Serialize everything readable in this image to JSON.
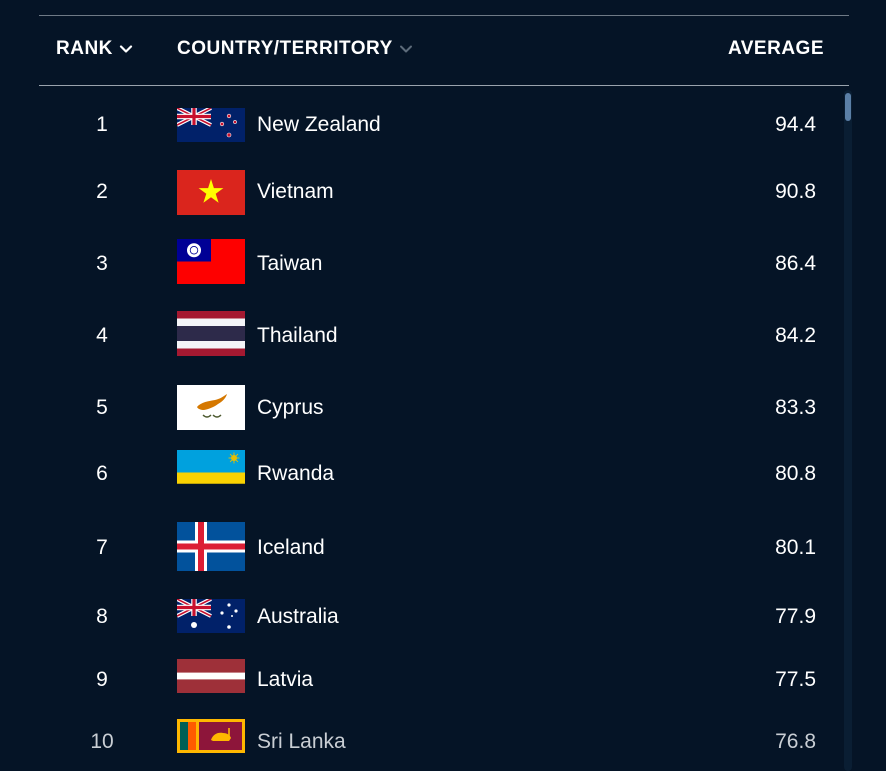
{
  "table": {
    "headers": {
      "rank": "RANK",
      "country": "COUNTRY/TERRITORY",
      "average": "AVERAGE"
    },
    "rows": [
      {
        "rank": "1",
        "country": "New Zealand",
        "average": "94.4",
        "flag": "new-zealand"
      },
      {
        "rank": "2",
        "country": "Vietnam",
        "average": "90.8",
        "flag": "vietnam"
      },
      {
        "rank": "3",
        "country": "Taiwan",
        "average": "86.4",
        "flag": "taiwan"
      },
      {
        "rank": "4",
        "country": "Thailand",
        "average": "84.2",
        "flag": "thailand"
      },
      {
        "rank": "5",
        "country": "Cyprus",
        "average": "83.3",
        "flag": "cyprus"
      },
      {
        "rank": "6",
        "country": "Rwanda",
        "average": "80.8",
        "flag": "rwanda"
      },
      {
        "rank": "7",
        "country": "Iceland",
        "average": "80.1",
        "flag": "iceland"
      },
      {
        "rank": "8",
        "country": "Australia",
        "average": "77.9",
        "flag": "australia"
      },
      {
        "rank": "9",
        "country": "Latvia",
        "average": "77.5",
        "flag": "latvia"
      },
      {
        "rank": "10",
        "country": "Sri Lanka",
        "average": "76.8",
        "flag": "sri-lanka"
      }
    ]
  },
  "icons": {
    "rank_sort": "chevron-down-icon",
    "country_sort": "chevron-down-icon"
  },
  "colors": {
    "background": "#051426",
    "text": "#ffffff",
    "inactive_chevron": "#5d6b7a",
    "scroll_thumb": "#5b7fa6"
  }
}
